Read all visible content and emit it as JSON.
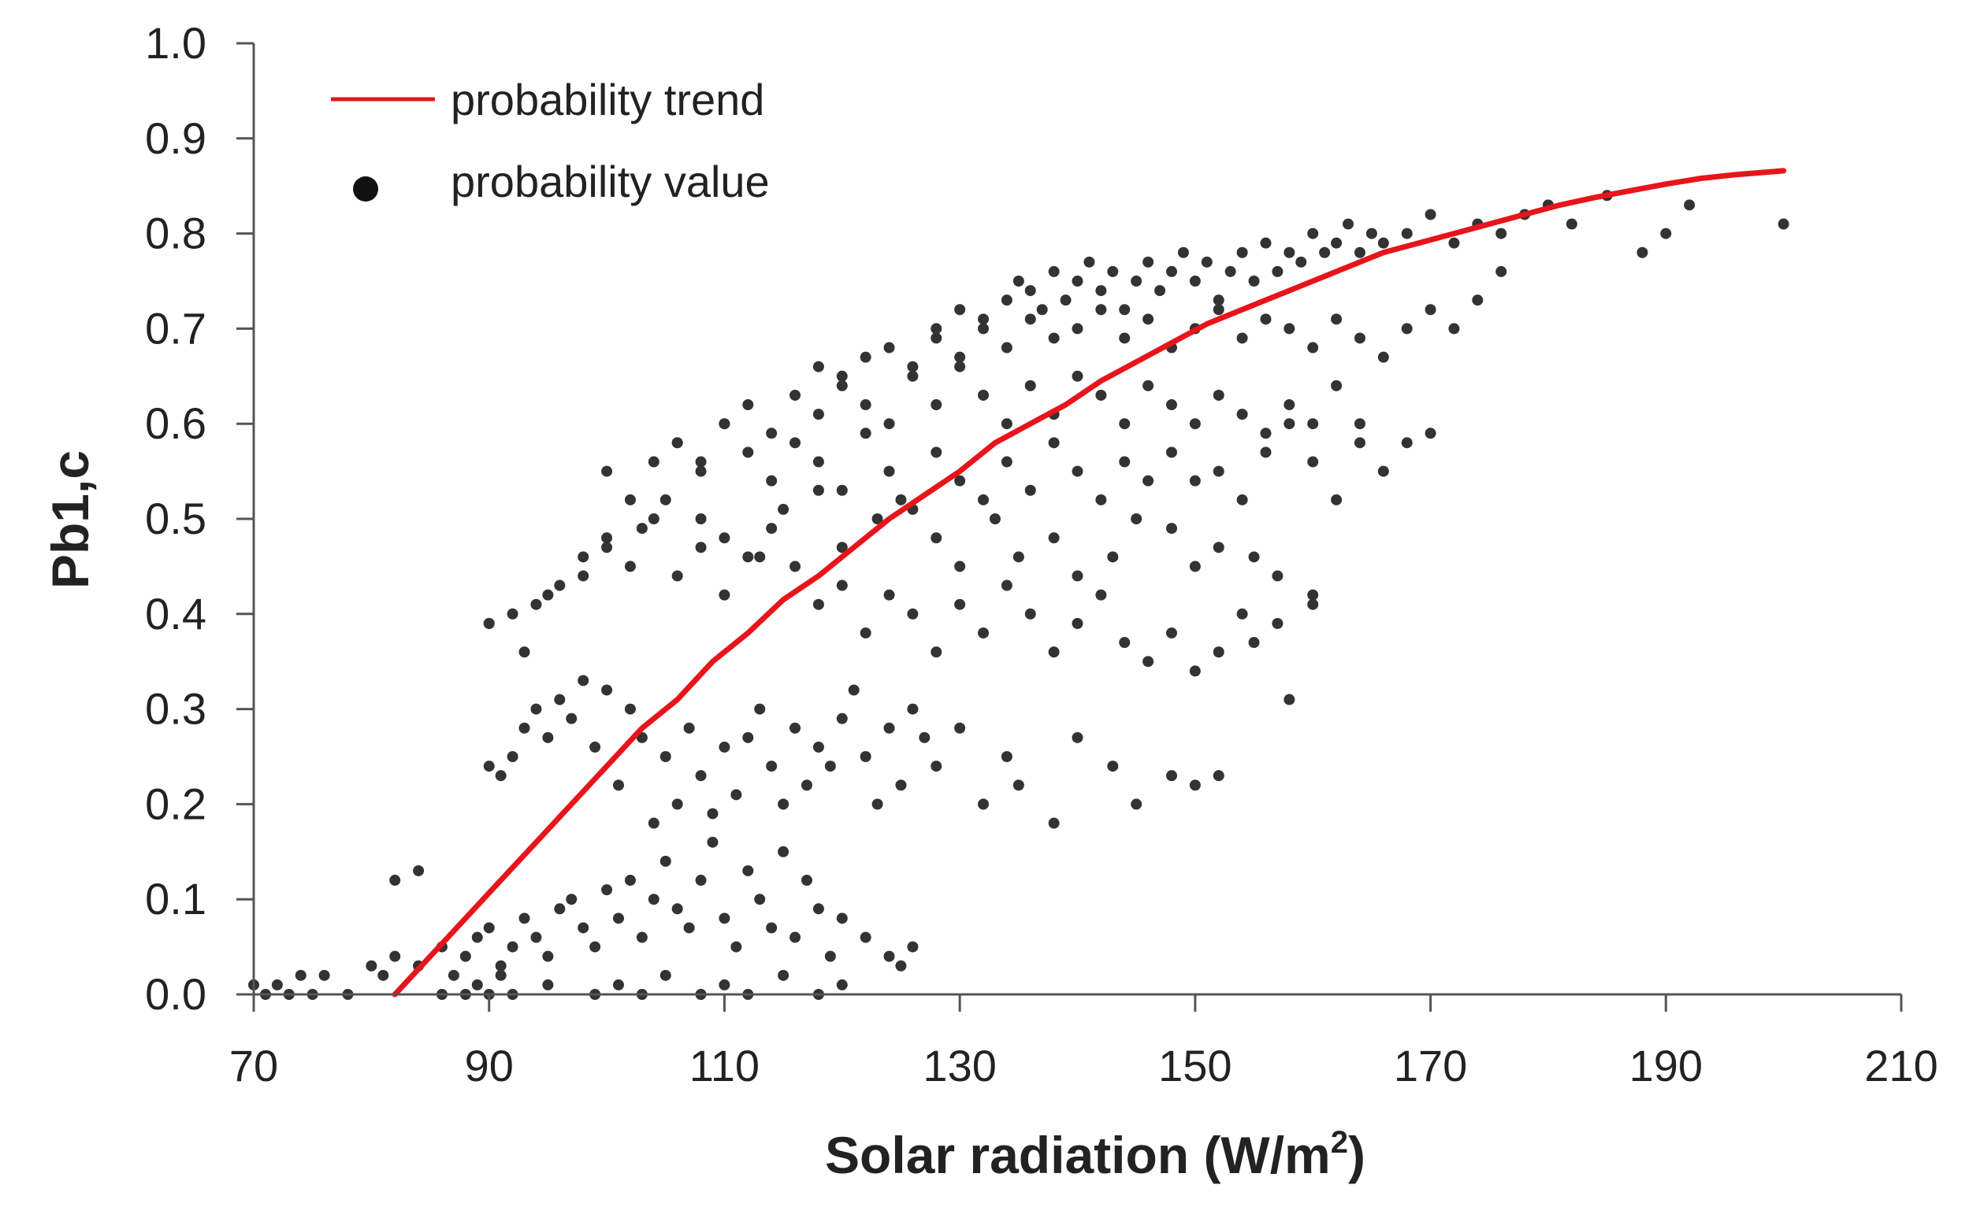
{
  "chart_data": {
    "type": "scatter",
    "title": "",
    "xlabel": "Solar radiation (W/m",
    "xlabel_superscript": "2",
    "xlabel_suffix": ")",
    "ylabel": "Pb1,c",
    "xlim": [
      70,
      210
    ],
    "ylim": [
      0.0,
      1.0
    ],
    "xticks": [
      "70",
      "90",
      "110",
      "130",
      "150",
      "170",
      "190",
      "210"
    ],
    "yticks": [
      "0.0",
      "0.1",
      "0.2",
      "0.3",
      "0.4",
      "0.5",
      "0.6",
      "0.7",
      "0.8",
      "0.9",
      "1.0"
    ],
    "grid": false,
    "legend": {
      "position": "top-left",
      "entries": [
        {
          "label": "probability trend",
          "marker": "line",
          "color": "#e8141b"
        },
        {
          "label": "probability value",
          "marker": "dot",
          "color": "#333333"
        }
      ]
    },
    "series": [
      {
        "name": "probability trend",
        "kind": "line",
        "color": "#e8141b",
        "x": [
          82,
          85,
          88,
          91,
          94,
          97,
          100,
          103,
          106,
          109,
          112,
          115,
          118,
          121,
          124,
          127,
          130,
          133,
          136,
          139,
          142,
          145,
          148,
          151,
          154,
          157,
          160,
          163,
          166,
          169,
          172,
          175,
          178,
          181,
          184,
          187,
          190,
          193,
          196,
          200
        ],
        "y": [
          0.0,
          0.04,
          0.08,
          0.12,
          0.16,
          0.2,
          0.24,
          0.28,
          0.31,
          0.35,
          0.38,
          0.415,
          0.44,
          0.47,
          0.5,
          0.525,
          0.55,
          0.58,
          0.6,
          0.62,
          0.645,
          0.665,
          0.685,
          0.705,
          0.72,
          0.735,
          0.75,
          0.765,
          0.78,
          0.79,
          0.8,
          0.81,
          0.82,
          0.83,
          0.838,
          0.845,
          0.852,
          0.858,
          0.862,
          0.866
        ]
      },
      {
        "name": "probability value",
        "kind": "scatter",
        "color": "#333333",
        "x": [
          70,
          71,
          72,
          73,
          74,
          75,
          76,
          78,
          80,
          81,
          82,
          84,
          86,
          87,
          88,
          89,
          90,
          91,
          92,
          95,
          99,
          101,
          103,
          105,
          108,
          110,
          112,
          115,
          118,
          120,
          82,
          84,
          86,
          88,
          89,
          90,
          91,
          92,
          93,
          94,
          95,
          96,
          97,
          98,
          99,
          100,
          101,
          102,
          103,
          104,
          105,
          106,
          107,
          108,
          109,
          110,
          111,
          112,
          113,
          114,
          115,
          116,
          117,
          118,
          119,
          120,
          122,
          124,
          125,
          126,
          90,
          91,
          92,
          93,
          94,
          95,
          96,
          97,
          98,
          99,
          100,
          101,
          102,
          103,
          104,
          105,
          106,
          107,
          108,
          109,
          110,
          111,
          112,
          113,
          114,
          115,
          116,
          117,
          118,
          119,
          120,
          121,
          122,
          123,
          124,
          125,
          126,
          127,
          128,
          130,
          132,
          134,
          135,
          138,
          140,
          143,
          145,
          148,
          150,
          152,
          90,
          92,
          94,
          96,
          98,
          100,
          102,
          104,
          106,
          108,
          110,
          112,
          114,
          116,
          118,
          120,
          122,
          124,
          126,
          128,
          130,
          132,
          134,
          136,
          138,
          140,
          142,
          144,
          146,
          148,
          150,
          152,
          154,
          155,
          157,
          158,
          160,
          90,
          93,
          95,
          98,
          100,
          103,
          105,
          108,
          110,
          113,
          115,
          118,
          120,
          123,
          125,
          128,
          130,
          133,
          135,
          138,
          140,
          143,
          145,
          148,
          150,
          152,
          155,
          157,
          160,
          100,
          102,
          104,
          106,
          108,
          110,
          112,
          114,
          116,
          118,
          120,
          122,
          124,
          126,
          128,
          130,
          132,
          134,
          136,
          138,
          140,
          142,
          144,
          146,
          148,
          150,
          152,
          154,
          156,
          158,
          160,
          162,
          164,
          166,
          106,
          108,
          110,
          112,
          114,
          116,
          118,
          120,
          122,
          124,
          126,
          128,
          130,
          132,
          134,
          136,
          138,
          140,
          142,
          144,
          146,
          148,
          150,
          152,
          154,
          156,
          158,
          160,
          162,
          164,
          168,
          170,
          118,
          120,
          122,
          124,
          126,
          128,
          130,
          132,
          134,
          136,
          138,
          140,
          142,
          144,
          146,
          148,
          150,
          152,
          154,
          156,
          158,
          160,
          162,
          164,
          166,
          168,
          170,
          172,
          174,
          176,
          128,
          130,
          132,
          134,
          135,
          136,
          137,
          138,
          139,
          140,
          141,
          142,
          143,
          144,
          145,
          146,
          147,
          148,
          149,
          150,
          151,
          152,
          153,
          154,
          155,
          156,
          157,
          158,
          159,
          160,
          161,
          162,
          163,
          164,
          165,
          166,
          168,
          170,
          172,
          174,
          176,
          178,
          180,
          182,
          185,
          188,
          190,
          192,
          200
        ],
        "y": [
          0.01,
          0.0,
          0.01,
          0.0,
          0.02,
          0.0,
          0.02,
          0.0,
          0.03,
          0.02,
          0.04,
          0.03,
          0.0,
          0.02,
          0.0,
          0.01,
          0.0,
          0.02,
          0.0,
          0.01,
          0.0,
          0.01,
          0.0,
          0.02,
          0.0,
          0.01,
          0.0,
          0.02,
          0.0,
          0.01,
          0.12,
          0.13,
          0.05,
          0.04,
          0.06,
          0.07,
          0.03,
          0.05,
          0.08,
          0.06,
          0.04,
          0.09,
          0.1,
          0.07,
          0.05,
          0.11,
          0.08,
          0.12,
          0.06,
          0.1,
          0.14,
          0.09,
          0.07,
          0.12,
          0.16,
          0.08,
          0.05,
          0.13,
          0.1,
          0.07,
          0.15,
          0.06,
          0.12,
          0.09,
          0.04,
          0.08,
          0.06,
          0.04,
          0.03,
          0.05,
          0.24,
          0.23,
          0.25,
          0.28,
          0.3,
          0.27,
          0.31,
          0.29,
          0.33,
          0.26,
          0.32,
          0.22,
          0.3,
          0.27,
          0.18,
          0.25,
          0.2,
          0.28,
          0.23,
          0.19,
          0.26,
          0.21,
          0.27,
          0.3,
          0.24,
          0.2,
          0.28,
          0.22,
          0.26,
          0.24,
          0.29,
          0.32,
          0.25,
          0.2,
          0.28,
          0.22,
          0.3,
          0.27,
          0.24,
          0.28,
          0.2,
          0.25,
          0.22,
          0.18,
          0.27,
          0.24,
          0.2,
          0.23,
          0.22,
          0.23,
          0.39,
          0.4,
          0.41,
          0.43,
          0.46,
          0.48,
          0.45,
          0.5,
          0.44,
          0.47,
          0.42,
          0.46,
          0.49,
          0.45,
          0.41,
          0.43,
          0.38,
          0.42,
          0.4,
          0.36,
          0.41,
          0.38,
          0.43,
          0.4,
          0.36,
          0.39,
          0.42,
          0.37,
          0.35,
          0.38,
          0.34,
          0.36,
          0.4,
          0.37,
          0.39,
          0.31,
          0.42,
          0.39,
          0.36,
          0.42,
          0.44,
          0.47,
          0.49,
          0.52,
          0.5,
          0.48,
          0.46,
          0.51,
          0.53,
          0.47,
          0.5,
          0.52,
          0.48,
          0.45,
          0.5,
          0.46,
          0.48,
          0.44,
          0.46,
          0.5,
          0.49,
          0.45,
          0.47,
          0.46,
          0.44,
          0.41,
          0.55,
          0.52,
          0.56,
          0.58,
          0.55,
          0.6,
          0.57,
          0.54,
          0.58,
          0.56,
          0.53,
          0.59,
          0.55,
          0.51,
          0.57,
          0.54,
          0.52,
          0.56,
          0.53,
          0.58,
          0.55,
          0.52,
          0.56,
          0.54,
          0.57,
          0.54,
          0.55,
          0.52,
          0.57,
          0.6,
          0.56,
          0.52,
          0.6,
          0.55,
          0.58,
          0.56,
          0.6,
          0.62,
          0.59,
          0.63,
          0.61,
          0.64,
          0.62,
          0.6,
          0.65,
          0.62,
          0.66,
          0.63,
          0.6,
          0.64,
          0.61,
          0.65,
          0.63,
          0.6,
          0.64,
          0.62,
          0.6,
          0.63,
          0.61,
          0.59,
          0.62,
          0.6,
          0.64,
          0.58,
          0.58,
          0.59,
          0.66,
          0.65,
          0.67,
          0.68,
          0.66,
          0.69,
          0.67,
          0.7,
          0.68,
          0.71,
          0.69,
          0.7,
          0.72,
          0.69,
          0.71,
          0.68,
          0.7,
          0.72,
          0.69,
          0.71,
          0.7,
          0.68,
          0.71,
          0.69,
          0.67,
          0.7,
          0.72,
          0.7,
          0.73,
          0.76,
          0.7,
          0.72,
          0.71,
          0.73,
          0.75,
          0.74,
          0.72,
          0.76,
          0.73,
          0.75,
          0.77,
          0.74,
          0.76,
          0.72,
          0.75,
          0.77,
          0.74,
          0.76,
          0.78,
          0.75,
          0.77,
          0.73,
          0.76,
          0.78,
          0.75,
          0.79,
          0.76,
          0.78,
          0.77,
          0.8,
          0.78,
          0.79,
          0.81,
          0.78,
          0.8,
          0.79,
          0.8,
          0.82,
          0.79,
          0.81,
          0.8,
          0.82,
          0.83,
          0.81,
          0.84,
          0.78,
          0.8,
          0.83,
          0.81
        ]
      }
    ]
  }
}
